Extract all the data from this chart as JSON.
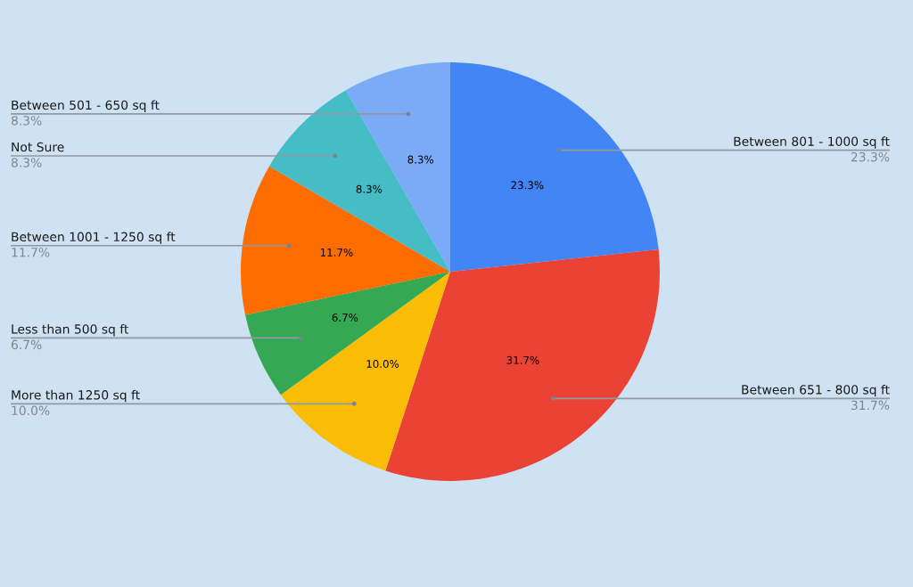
{
  "chart_data": {
    "type": "pie",
    "categories": [
      "Between 801 - 1000 sq ft",
      "Between 651 - 800 sq ft",
      "More than 1250 sq ft",
      "Less than 500 sq ft",
      "Between 1001 - 1250 sq ft",
      "Not Sure",
      "Between 501 - 650 sq ft"
    ],
    "values": [
      23.3,
      31.7,
      10.0,
      6.7,
      11.7,
      8.3,
      8.3
    ],
    "colors": [
      "#4285f4",
      "#ea4335",
      "#fbbc04",
      "#34a853",
      "#ff6d01",
      "#46bdc6",
      "#7baaf7"
    ],
    "value_labels": [
      "23.3%",
      "31.7%",
      "10.0%",
      "6.7%",
      "11.7%",
      "8.3%",
      "8.3%"
    ]
  }
}
